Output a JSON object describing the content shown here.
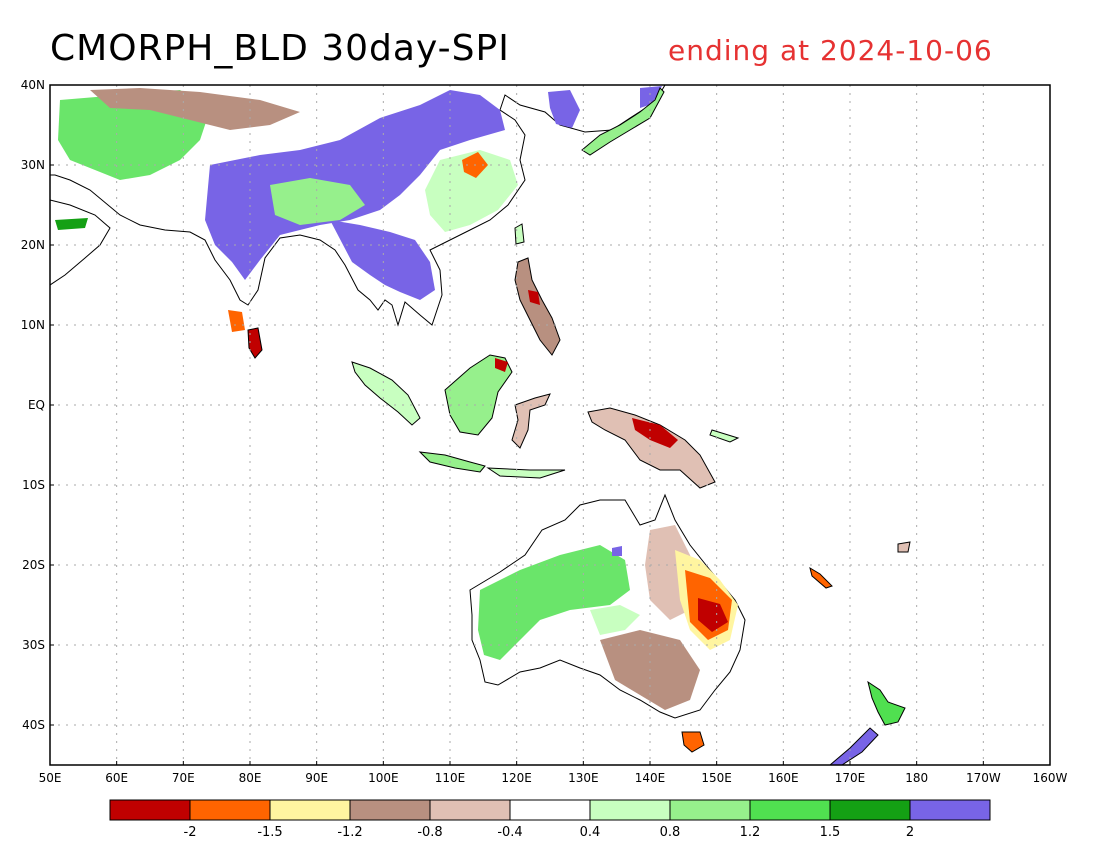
{
  "title": "CMORPH_BLD 30day-SPI",
  "subtitle": "ending at 2024-10-06",
  "lat_ticks": [
    {
      "lat": 40,
      "label": "40N"
    },
    {
      "lat": 30,
      "label": "30N"
    },
    {
      "lat": 20,
      "label": "20N"
    },
    {
      "lat": 10,
      "label": "10N"
    },
    {
      "lat": 0,
      "label": "EQ"
    },
    {
      "lat": -10,
      "label": "10S"
    },
    {
      "lat": -20,
      "label": "20S"
    },
    {
      "lat": -30,
      "label": "30S"
    },
    {
      "lat": -40,
      "label": "40S"
    }
  ],
  "lon_ticks": [
    {
      "lon": 50,
      "label": "50E"
    },
    {
      "lon": 60,
      "label": "60E"
    },
    {
      "lon": 70,
      "label": "70E"
    },
    {
      "lon": 80,
      "label": "80E"
    },
    {
      "lon": 90,
      "label": "90E"
    },
    {
      "lon": 100,
      "label": "100E"
    },
    {
      "lon": 110,
      "label": "110E"
    },
    {
      "lon": 120,
      "label": "120E"
    },
    {
      "lon": 130,
      "label": "130E"
    },
    {
      "lon": 140,
      "label": "140E"
    },
    {
      "lon": 150,
      "label": "150E"
    },
    {
      "lon": 160,
      "label": "160E"
    },
    {
      "lon": 170,
      "label": "170E"
    },
    {
      "lon": 180,
      "label": "180"
    },
    {
      "lon": 190,
      "label": "170W"
    },
    {
      "lon": 200,
      "label": "160W"
    }
  ],
  "extent": {
    "lon_min": 50,
    "lon_max": 200,
    "lat_min": -45,
    "lat_max": 40
  },
  "colorbar": {
    "colors": [
      "#c00000",
      "#ff6400",
      "#fff5a0",
      "#b89080",
      "#e0c0b4",
      "#ffffff",
      "#c8ffc0",
      "#96f08c",
      "#50e050",
      "#14a014",
      "#7864e6"
    ],
    "labels": [
      "-2",
      "-1.5",
      "-1.2",
      "-0.8",
      "-0.4",
      "0.4",
      "0.8",
      "1.2",
      "1.5",
      "2"
    ]
  },
  "colors": {
    "land_outline": "#000000",
    "grid": "#aaaaaa",
    "title": "#000000",
    "subtitle": "#e63232"
  }
}
